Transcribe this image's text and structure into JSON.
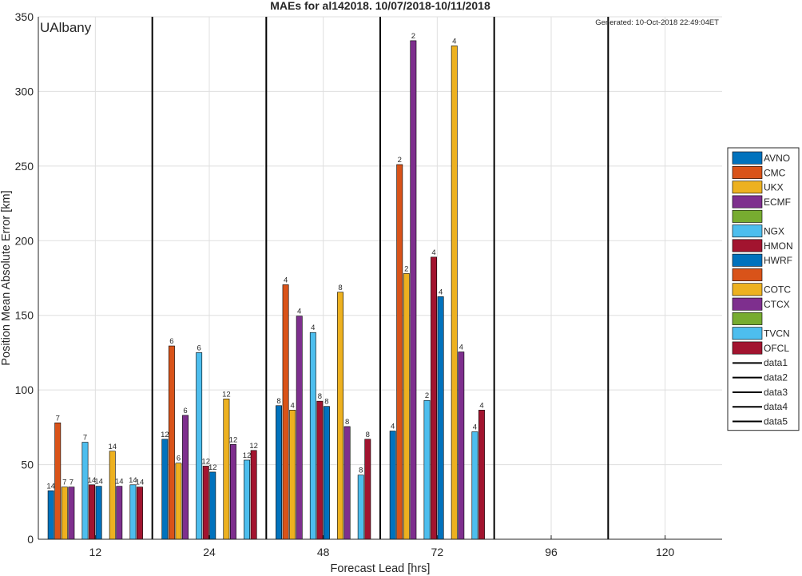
{
  "chart_data": {
    "type": "bar",
    "title": "MAEs for al142018. 10/07/2018-10/11/2018",
    "xlabel": "Forecast Lead [hrs]",
    "ylabel": "Position Mean Absolute Error [km]",
    "ylim": [
      0,
      350
    ],
    "yticks": [
      0,
      50,
      100,
      150,
      200,
      250,
      300,
      350
    ],
    "categories": [
      "12",
      "24",
      "48",
      "72",
      "96",
      "120"
    ],
    "grid": true,
    "legend_position": "right",
    "watermark": "UAlbany",
    "generated": "Generated: 10-Oct-2018 22:49:04ET",
    "colors": {
      "blue": "#0072BD",
      "orange": "#D95319",
      "yellow": "#EDB120",
      "purple": "#7E2F8E",
      "green": "#77AC30",
      "cyan": "#4DBEEE",
      "red": "#A2142F",
      "watermark": "#7E2F8E"
    },
    "series": [
      {
        "name": "AVNO",
        "color": "blue",
        "values": [
          32.5,
          67,
          89.5,
          72.5,
          null,
          null
        ],
        "counts": [
          "14",
          "12",
          "8",
          "4",
          null,
          null
        ]
      },
      {
        "name": "CMC",
        "color": "orange",
        "values": [
          78,
          129.5,
          170.5,
          251,
          null,
          null
        ],
        "counts": [
          "7",
          "6",
          "4",
          "2",
          null,
          null
        ]
      },
      {
        "name": "UKX",
        "color": "yellow",
        "values": [
          35,
          51,
          86.5,
          178,
          null,
          null
        ],
        "counts": [
          "7",
          "6",
          "4",
          "2",
          null,
          null
        ]
      },
      {
        "name": "ECMF",
        "color": "purple",
        "values": [
          35,
          83,
          149.5,
          334,
          null,
          null
        ],
        "counts": [
          "7",
          "6",
          "4",
          "2",
          null,
          null
        ]
      },
      {
        "name": "",
        "color": "green",
        "values": [
          null,
          null,
          null,
          null,
          null,
          null
        ],
        "counts": [
          null,
          null,
          null,
          null,
          null,
          null
        ]
      },
      {
        "name": "NGX",
        "color": "cyan",
        "values": [
          65,
          125,
          138.5,
          93,
          null,
          null
        ],
        "counts": [
          "7",
          "6",
          "4",
          "2",
          null,
          null
        ]
      },
      {
        "name": "HMON",
        "color": "red",
        "values": [
          36.5,
          49,
          92.5,
          189,
          null,
          null
        ],
        "counts": [
          "14",
          "12",
          "8",
          "4",
          null,
          null
        ]
      },
      {
        "name": "HWRF",
        "color": "blue",
        "values": [
          35.5,
          45,
          89,
          162.5,
          null,
          null
        ],
        "counts": [
          "14",
          "12",
          "8",
          "4",
          null,
          null
        ]
      },
      {
        "name": "",
        "color": "orange",
        "values": [
          null,
          null,
          null,
          null,
          null,
          null
        ],
        "counts": [
          null,
          null,
          null,
          null,
          null,
          null
        ]
      },
      {
        "name": "COTC",
        "color": "yellow",
        "values": [
          59,
          94,
          165.5,
          330.5,
          null,
          null
        ],
        "counts": [
          "14",
          "12",
          "8",
          "4",
          null,
          null
        ]
      },
      {
        "name": "CTCX",
        "color": "purple",
        "values": [
          35.5,
          63.5,
          75.5,
          125.5,
          null,
          null
        ],
        "counts": [
          "14",
          "12",
          "8",
          "4",
          null,
          null
        ]
      },
      {
        "name": "",
        "color": "green",
        "values": [
          null,
          null,
          null,
          null,
          null,
          null
        ],
        "counts": [
          null,
          null,
          null,
          null,
          null,
          null
        ]
      },
      {
        "name": "TVCN",
        "color": "cyan",
        "values": [
          36.5,
          53,
          43,
          72,
          null,
          null
        ],
        "counts": [
          "14",
          "12",
          "8",
          "4",
          null,
          null
        ]
      },
      {
        "name": "OFCL",
        "color": "red",
        "values": [
          35,
          59.5,
          67,
          86.5,
          null,
          null
        ],
        "counts": [
          "14",
          "12",
          "8",
          "4",
          null,
          null
        ]
      }
    ],
    "legend_lines": [
      "data1",
      "data2",
      "data3",
      "data4",
      "data5"
    ]
  }
}
